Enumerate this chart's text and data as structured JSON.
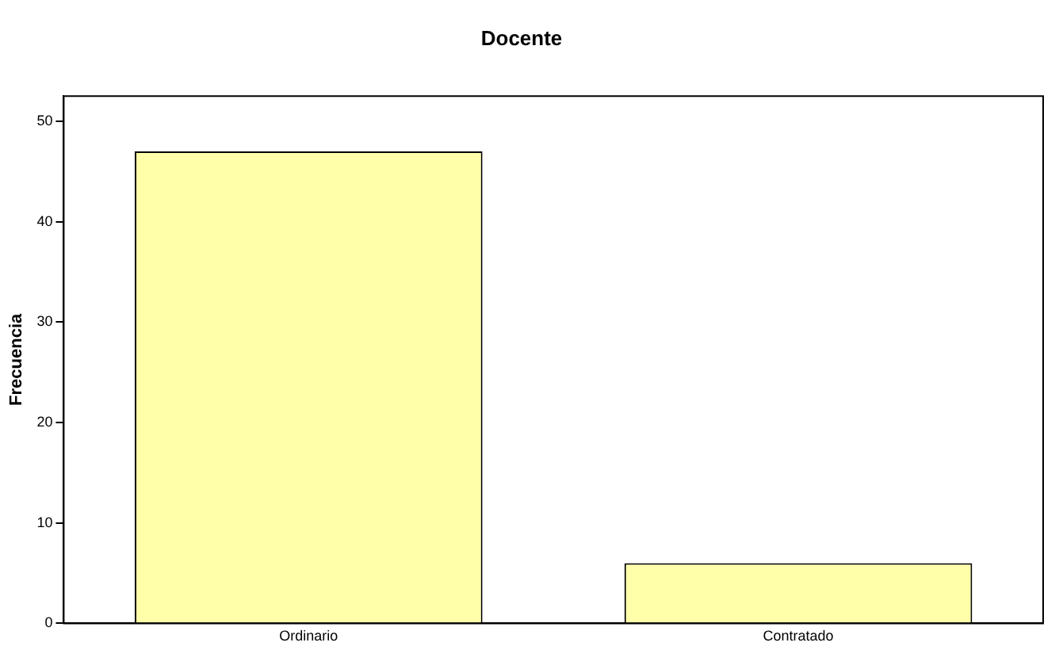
{
  "chart_data": {
    "type": "bar",
    "title": "Docente",
    "ylabel": "Frecuencia",
    "categories": [
      "Ordinario",
      "Contratado"
    ],
    "values": [
      47,
      6
    ],
    "color": "#ffffaa",
    "ylim": [
      0,
      52.5
    ],
    "yticks": [
      0,
      10,
      20,
      30,
      40,
      50
    ],
    "grid": false,
    "legend": false
  }
}
